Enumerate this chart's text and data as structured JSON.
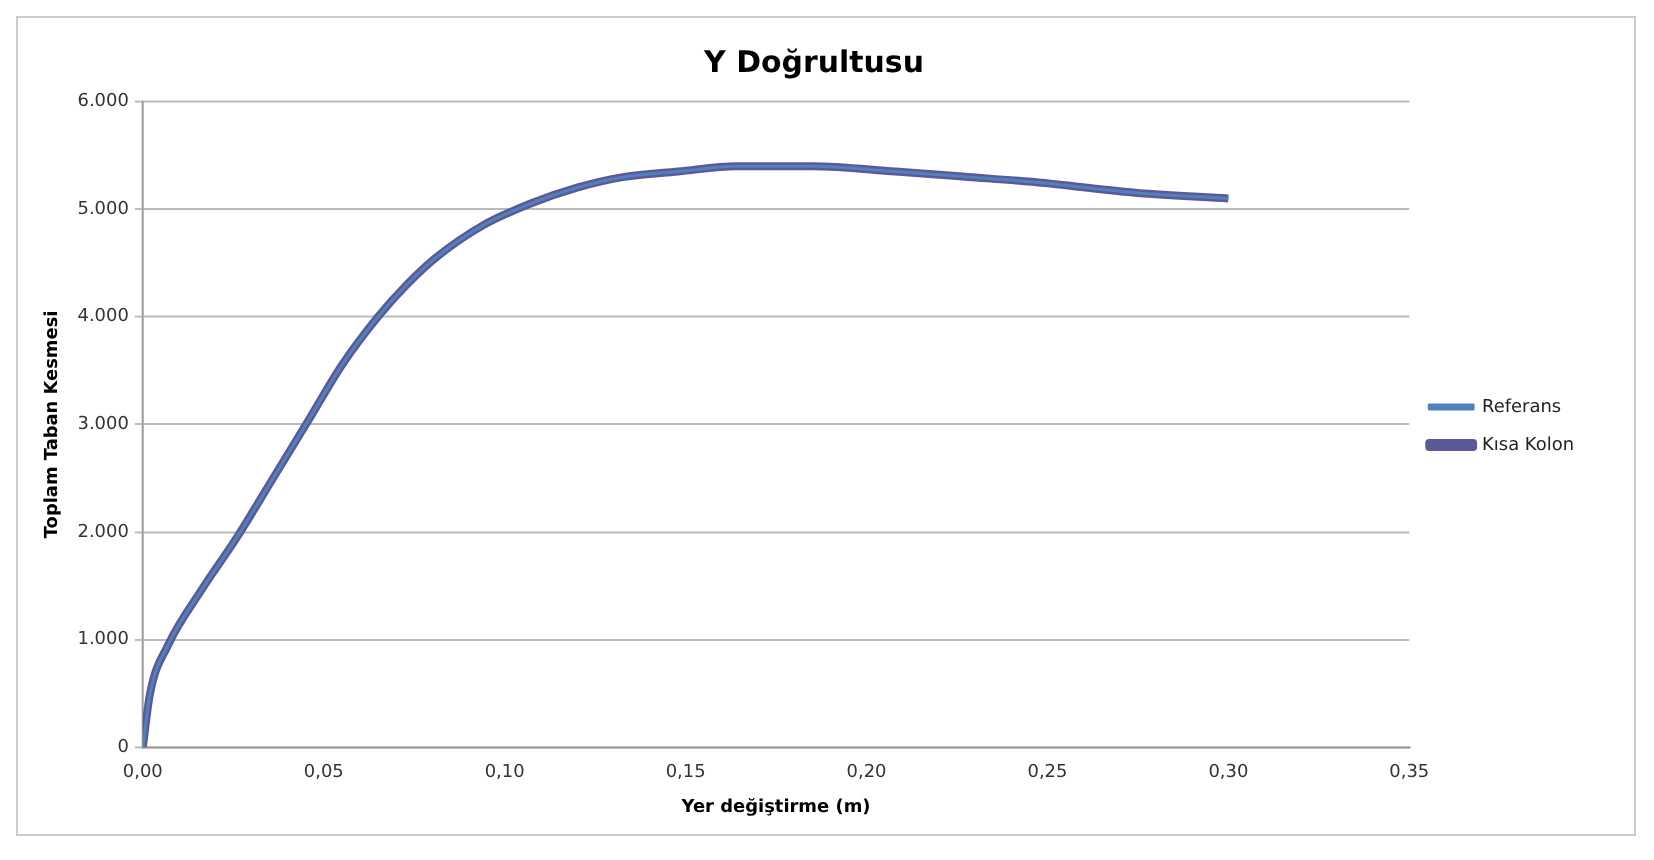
{
  "chart_data": {
    "type": "line",
    "title": "Y Doğrultusu",
    "xlabel": "Yer değiştirme (m)",
    "ylabel": "Toplam Taban Kesmesi",
    "x": [
      0,
      0.002,
      0.007,
      0.016,
      0.026,
      0.036,
      0.046,
      0.055,
      0.065,
      0.073,
      0.081,
      0.094,
      0.107,
      0.12,
      0.133,
      0.148,
      0.164,
      0.185,
      0.208,
      0.228,
      0.247,
      0.275,
      0.3
    ],
    "series": [
      {
        "name": "Referans",
        "color": "#4f81bd",
        "values": [
          0,
          500,
          950,
          1450,
          1950,
          2500,
          3050,
          3550,
          4000,
          4300,
          4550,
          4850,
          5050,
          5200,
          5300,
          5350,
          5400,
          5400,
          5350,
          5300,
          5250,
          5150,
          5100
        ]
      },
      {
        "name": "Kısa Kolon",
        "color": "#5c5a96",
        "values": [
          0,
          500,
          950,
          1450,
          1950,
          2500,
          3050,
          3550,
          4000,
          4300,
          4550,
          4850,
          5050,
          5200,
          5300,
          5350,
          5400,
          5400,
          5350,
          5300,
          5250,
          5150,
          5100
        ]
      }
    ],
    "xlim": [
      0,
      0.35
    ],
    "xticks": [
      {
        "value": 0,
        "label": "0,00"
      },
      {
        "value": 0.05,
        "label": "0,05"
      },
      {
        "value": 0.1,
        "label": "0,10"
      },
      {
        "value": 0.15,
        "label": "0,15"
      },
      {
        "value": 0.2,
        "label": "0,20"
      },
      {
        "value": 0.25,
        "label": "0,25"
      },
      {
        "value": 0.3,
        "label": "0,30"
      },
      {
        "value": 0.35,
        "label": "0,35"
      }
    ],
    "ylim": [
      0,
      6000
    ],
    "yticks": [
      0,
      {
        "value": 1000,
        "label": "1.000"
      },
      {
        "value": 2000,
        "label": "2.000"
      },
      {
        "value": 3000,
        "label": "3.000"
      },
      {
        "value": 4000,
        "label": "4.000"
      },
      {
        "value": 5000,
        "label": "5.000"
      },
      {
        "value": 6000,
        "label": "6.000"
      }
    ],
    "grid": "y",
    "legend": "right",
    "marker": "none",
    "line_style": "solid"
  }
}
